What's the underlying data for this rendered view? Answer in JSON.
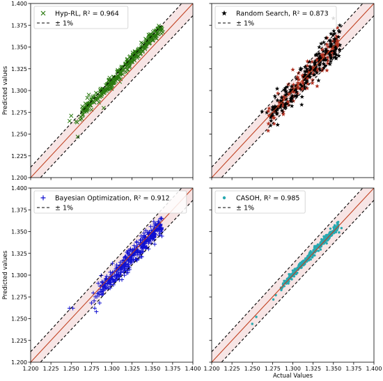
{
  "chart_data": [
    {
      "type": "scatter",
      "panel": "top-left",
      "xlim": [
        1.2,
        1.4
      ],
      "ylim": [
        1.2,
        1.4
      ],
      "ylabel": "Predicted values",
      "xlabel": "",
      "show_x_ticklabels": false,
      "show_y_ticklabels": true,
      "legend_placement": "top-left",
      "legend_entries": [
        "Hyp-RL, R² = 0.964",
        "± 1%"
      ],
      "marker": "x",
      "marker_color": "#2a7a10",
      "seed": 11,
      "n_points": 320,
      "x_range": [
        1.255,
        1.362
      ],
      "noise": 0.0035,
      "y_offset": 0.011,
      "outliers": [
        [
          1.248,
          1.265
        ],
        [
          1.25,
          1.271
        ],
        [
          1.258,
          1.247
        ],
        [
          1.27,
          1.279
        ],
        [
          1.273,
          1.286
        ],
        [
          1.287,
          1.299
        ],
        [
          1.29,
          1.28
        ],
        [
          1.3,
          1.302
        ],
        [
          1.31,
          1.31
        ],
        [
          1.363,
          1.367
        ]
      ],
      "series": [
        {
          "name": "Hyp-RL, R² = 0.964",
          "kind": "scatter"
        },
        {
          "name": "± 1%",
          "kind": "bounds",
          "factor": 0.01
        },
        {
          "name": "",
          "kind": "identity"
        }
      ]
    },
    {
      "type": "scatter",
      "panel": "top-right",
      "xlim": [
        1.2,
        1.4
      ],
      "ylim": [
        1.2,
        1.4
      ],
      "ylabel": "",
      "xlabel": "",
      "show_x_ticklabels": false,
      "show_y_ticklabels": false,
      "legend_placement": "top-left",
      "legend_entries": [
        "Random Search, R² = 0.873",
        "± 1%"
      ],
      "marker": "star",
      "marker_color": "#000000",
      "inner_marker_color": "#b03020",
      "seed": 23,
      "n_points": 340,
      "x_range": [
        1.265,
        1.358
      ],
      "noise": 0.0075,
      "y_offset": 0.0,
      "outliers": [
        [
          1.262,
          1.276
        ],
        [
          1.27,
          1.262
        ],
        [
          1.278,
          1.279
        ],
        [
          1.35,
          1.383
        ],
        [
          1.355,
          1.372
        ],
        [
          1.3,
          1.324
        ],
        [
          1.33,
          1.305
        ]
      ],
      "series": [
        {
          "name": "Random Search, R² = 0.873",
          "kind": "scatter"
        },
        {
          "name": "± 1%",
          "kind": "bounds",
          "factor": 0.01
        },
        {
          "name": "",
          "kind": "identity"
        }
      ]
    },
    {
      "type": "scatter",
      "panel": "bottom-left",
      "xlim": [
        1.2,
        1.4
      ],
      "ylim": [
        1.2,
        1.4
      ],
      "ylabel": "Predicted values",
      "xlabel": "",
      "show_x_ticklabels": true,
      "show_y_ticklabels": true,
      "legend_placement": "top-left",
      "legend_entries": [
        "Bayesian Optimization, R² = 0.912",
        "± 1%"
      ],
      "marker": "plus",
      "marker_color": "#1010d0",
      "seed": 37,
      "n_points": 380,
      "x_range": [
        1.275,
        1.362
      ],
      "noise": 0.0055,
      "y_offset": -0.004,
      "outliers": [
        [
          1.248,
          1.262
        ],
        [
          1.252,
          1.262
        ],
        [
          1.275,
          1.268
        ],
        [
          1.279,
          1.262
        ],
        [
          1.281,
          1.258
        ],
        [
          1.285,
          1.268
        ],
        [
          1.29,
          1.284
        ]
      ],
      "series": [
        {
          "name": "Bayesian Optimization, R² = 0.912",
          "kind": "scatter"
        },
        {
          "name": "± 1%",
          "kind": "bounds",
          "factor": 0.01
        },
        {
          "name": "",
          "kind": "identity"
        }
      ]
    },
    {
      "type": "scatter",
      "panel": "bottom-right",
      "xlim": [
        1.2,
        1.4
      ],
      "ylim": [
        1.2,
        1.4
      ],
      "ylabel": "",
      "xlabel": "Actual Values",
      "show_x_ticklabels": true,
      "show_y_ticklabels": false,
      "legend_placement": "top-left",
      "legend_entries": [
        "CASOH, R² = 0.985",
        "± 1%"
      ],
      "marker": "dot",
      "marker_color": "#28a8b0",
      "seed": 53,
      "n_points": 340,
      "x_range": [
        1.282,
        1.356
      ],
      "noise": 0.0022,
      "y_offset": 0.001,
      "outliers": [
        [
          1.25,
          1.244
        ],
        [
          1.255,
          1.252
        ],
        [
          1.276,
          1.272
        ],
        [
          1.279,
          1.277
        ],
        [
          1.357,
          1.349
        ],
        [
          1.36,
          1.354
        ]
      ],
      "series": [
        {
          "name": "CASOH, R² = 0.985",
          "kind": "scatter"
        },
        {
          "name": "± 1%",
          "kind": "bounds",
          "factor": 0.01
        },
        {
          "name": "",
          "kind": "identity"
        }
      ]
    }
  ],
  "axis": {
    "ticks": [
      1.2,
      1.225,
      1.25,
      1.275,
      1.3,
      1.325,
      1.35,
      1.375,
      1.4
    ],
    "tick_labels": [
      "1.200",
      "1.225",
      "1.250",
      "1.275",
      "1.300",
      "1.325",
      "1.350",
      "1.375",
      "1.400"
    ]
  },
  "colors": {
    "identity_line": "#c04020",
    "bounds_line": "#000000",
    "band_fill": "#f4dada"
  }
}
